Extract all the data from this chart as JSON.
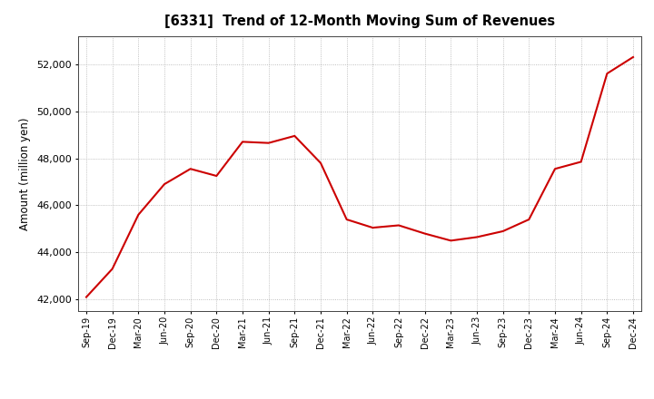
{
  "title": "[6331]  Trend of 12-Month Moving Sum of Revenues",
  "ylabel": "Amount (million yen)",
  "line_color": "#CC0000",
  "background_color": "#FFFFFF",
  "grid_color": "#999999",
  "ylim": [
    41500,
    53200
  ],
  "yticks": [
    42000,
    44000,
    46000,
    48000,
    50000,
    52000
  ],
  "labels": [
    "Sep-19",
    "Dec-19",
    "Mar-20",
    "Jun-20",
    "Sep-20",
    "Dec-20",
    "Mar-21",
    "Jun-21",
    "Sep-21",
    "Dec-21",
    "Mar-22",
    "Jun-22",
    "Sep-22",
    "Dec-22",
    "Mar-23",
    "Jun-23",
    "Sep-23",
    "Dec-23",
    "Mar-24",
    "Jun-24",
    "Sep-24",
    "Dec-24"
  ],
  "values": [
    42100,
    43300,
    45600,
    46900,
    47550,
    47250,
    48700,
    48650,
    48950,
    47800,
    45400,
    45050,
    45150,
    44800,
    44500,
    44650,
    44900,
    45400,
    47550,
    47850,
    51600,
    52300
  ]
}
